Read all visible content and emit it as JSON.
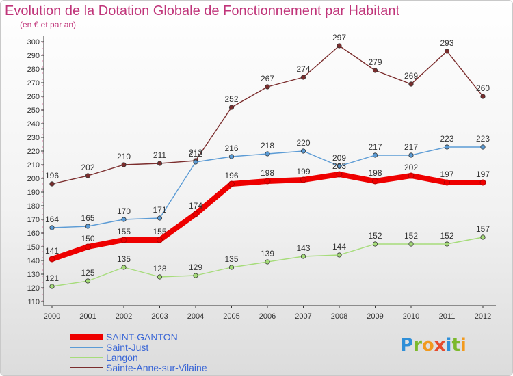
{
  "title": "Evolution de la Dotation Globale de Fonctionnement par Habitant",
  "subtitle": "(en € et par an)",
  "logo": {
    "text": "Proxiti",
    "letters": [
      {
        "ch": "P",
        "color": "#2f8fd8"
      },
      {
        "ch": "r",
        "color": "#7cb92c"
      },
      {
        "ch": "o",
        "color": "#f29a1e"
      },
      {
        "ch": "x",
        "color": "#e64b2c"
      },
      {
        "ch": "i",
        "color": "#2f8fd8"
      },
      {
        "ch": "t",
        "color": "#7cb92c"
      },
      {
        "ch": "i",
        "color": "#f29a1e"
      }
    ]
  },
  "chart_data": {
    "type": "line",
    "x": [
      "2000",
      "2001",
      "2002",
      "2003",
      "2004",
      "2005",
      "2006",
      "2007",
      "2008",
      "2009",
      "2010",
      "2011",
      "2012"
    ],
    "ylim": [
      110,
      300
    ],
    "yticks": [
      110,
      120,
      130,
      140,
      150,
      160,
      170,
      180,
      190,
      200,
      210,
      220,
      230,
      240,
      250,
      260,
      270,
      280,
      290,
      300
    ],
    "grid": false,
    "legend_position": "bottom-left",
    "series": [
      {
        "name": "SAINT-GANTON",
        "color": "#ee0000",
        "values": [
          141,
          150,
          155,
          155,
          174,
          196,
          198,
          199,
          203,
          198,
          202,
          197,
          197
        ]
      },
      {
        "name": "Saint-Just",
        "color": "#5b9bd5",
        "values": [
          164,
          165,
          170,
          171,
          212,
          216,
          218,
          220,
          209,
          217,
          217,
          223,
          223
        ]
      },
      {
        "name": "Langon",
        "color": "#a6dc7a",
        "values": [
          121,
          125,
          135,
          128,
          129,
          135,
          139,
          143,
          144,
          152,
          152,
          152,
          157
        ]
      },
      {
        "name": "Sainte-Anne-sur-Vilaine",
        "color": "#7b2d2d",
        "values": [
          196,
          202,
          210,
          211,
          213,
          252,
          267,
          274,
          297,
          279,
          269,
          293,
          260
        ]
      }
    ]
  }
}
